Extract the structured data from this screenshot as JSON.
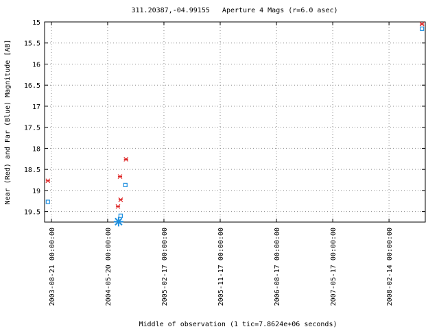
{
  "chart_data": {
    "type": "scatter",
    "title": "311.20387,-04.99155   Aperture 4 Mags (r=6.0 asec)",
    "xlabel": "Middle of observation (1 tic=7.8624e+06 seconds)",
    "ylabel": "Near (Red) and Far (Blue) Magnitude [AB]",
    "xlim": [
      "2003-07-19",
      "2008-08-08"
    ],
    "xticks": [
      {
        "value": "2003-08-21",
        "label": "2003-08-21 00:00:00"
      },
      {
        "value": "2004-05-20",
        "label": "2004-05-20 00:00:00"
      },
      {
        "value": "2005-02-17",
        "label": "2005-02-17 00:00:00"
      },
      {
        "value": "2005-11-17",
        "label": "2005-11-17 00:00:00"
      },
      {
        "value": "2006-08-17",
        "label": "2006-08-17 00:00:00"
      },
      {
        "value": "2007-05-17",
        "label": "2007-05-17 00:00:00"
      },
      {
        "value": "2008-02-14",
        "label": "2008-02-14 00:00:00"
      }
    ],
    "ylim": [
      15,
      19.75
    ],
    "y_reversed": true,
    "yticks": [
      15,
      15.5,
      16,
      16.5,
      17,
      17.5,
      18,
      18.5,
      19,
      19.5
    ],
    "grid": true,
    "series": [
      {
        "color": "#dd2222",
        "marker": "x",
        "x": [
          "2003-08-04",
          "2004-07-19",
          "2004-07-09",
          "2004-07-22",
          "2004-08-17",
          "2008-07-23"
        ],
        "values": [
          18.77,
          18.67,
          19.38,
          19.22,
          18.26,
          15.05
        ]
      },
      {
        "color": "#1e8fdf",
        "marker": "square",
        "x": [
          "2003-08-04",
          "2004-08-14",
          "2004-07-22",
          "2008-07-23"
        ],
        "values": [
          19.27,
          18.87,
          19.6,
          15.16
        ]
      },
      {
        "color": "#1e8fdf",
        "marker": "asterisk",
        "x": [
          "2004-07-12"
        ],
        "values": [
          19.74
        ]
      }
    ]
  }
}
